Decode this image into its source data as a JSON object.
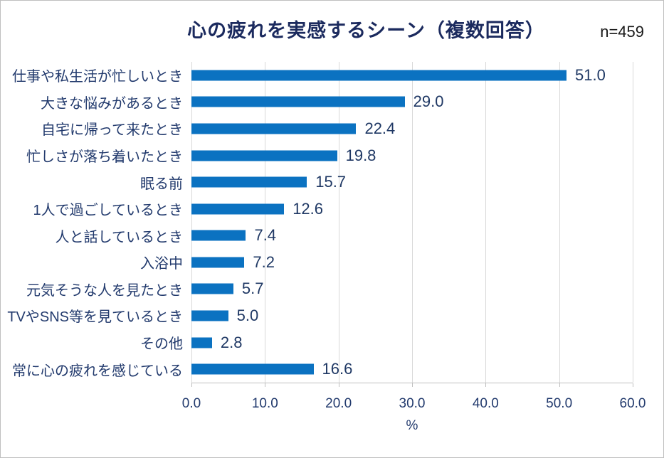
{
  "header": {
    "title": "心の疲れを実感するシーン（複数回答）",
    "sample_size": "n=459"
  },
  "chart_data": {
    "type": "bar",
    "orientation": "horizontal",
    "title": "心の疲れを実感するシーン（複数回答）",
    "sample_size": "n=459",
    "categories": [
      "仕事や私生活が忙しいとき",
      "大きな悩みがあるとき",
      "自宅に帰って来たとき",
      "忙しさが落ち着いたとき",
      "眠る前",
      "1人で過ごしているとき",
      "人と話しているとき",
      "入浴中",
      "元気そうな人を見たとき",
      "TVやSNS等を見ているとき",
      "その他",
      "常に心の疲れを感じている"
    ],
    "values": [
      51.0,
      29.0,
      22.4,
      19.8,
      15.7,
      12.6,
      7.4,
      7.2,
      5.7,
      5.0,
      2.8,
      16.6
    ],
    "value_labels": [
      "51.0",
      "29.0",
      "22.4",
      "19.8",
      "15.7",
      "12.6",
      "7.4",
      "7.2",
      "5.7",
      "5.0",
      "2.8",
      "16.6"
    ],
    "xlabel": "%",
    "x_ticks": [
      "0.0",
      "10.0",
      "20.0",
      "30.0",
      "40.0",
      "50.0",
      "60.0"
    ],
    "xlim": [
      0,
      60
    ],
    "grid": true,
    "legend": false,
    "bar_color": "#0b72c1",
    "text_color": "#223a6d",
    "value_label_color": "#1f3864",
    "title_color": "#1b2a5e",
    "gridline_color": "#d9d9d9"
  }
}
